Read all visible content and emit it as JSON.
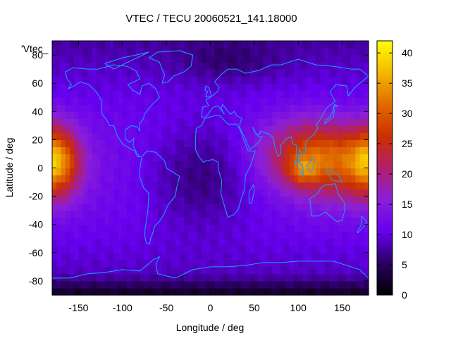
{
  "chart_data": {
    "type": "heatmap",
    "title": "VTEC / TECU 20060521_141.18000",
    "xlabel": "Longitude / deg",
    "ylabel": "Latitude / deg",
    "series_label": "'Vtec_",
    "xlim": [
      -180,
      180
    ],
    "ylim": [
      -90,
      90
    ],
    "x_ticks": [
      "-150",
      "-100",
      "-50",
      "0",
      "50",
      "100",
      "150"
    ],
    "y_ticks": [
      "-80",
      "-60",
      "-40",
      "-20",
      "0",
      "20",
      "40",
      "60",
      "80"
    ],
    "colorbar": {
      "range": [
        0,
        42
      ],
      "ticks": [
        "0",
        "5",
        "10",
        "15",
        "20",
        "25",
        "30",
        "35",
        "40"
      ],
      "colors": [
        "#000000",
        "#2a0060",
        "#6600ee",
        "#8a1fd8",
        "#b0206a",
        "#cc2f00",
        "#e06a00",
        "#f5b800",
        "#ffff00"
      ]
    },
    "grid": {
      "lon_step": 5,
      "lat_step": 5
    },
    "tec_features": [
      {
        "lon": 115,
        "lat": 10,
        "amplitude": 14,
        "sigma_lon": 40,
        "sigma_lat": 17
      },
      {
        "lon": 105,
        "lat": -2,
        "amplitude": 8,
        "sigma_lon": 12,
        "sigma_lat": 7
      },
      {
        "lon": 150,
        "lat": 0,
        "amplitude": 8,
        "sigma_lon": 35,
        "sigma_lat": 18
      },
      {
        "lon": -175,
        "lat": 5,
        "amplitude": 18,
        "sigma_lon": 18,
        "sigma_lat": 17
      },
      {
        "lon": -10,
        "lat": -5,
        "amplitude": -6,
        "sigma_lon": 45,
        "sigma_lat": 25
      },
      {
        "lon": 20,
        "lat": 75,
        "amplitude": -3,
        "sigma_lon": 40,
        "sigma_lat": 10
      }
    ],
    "coastline_color": "#1ca0ff"
  }
}
